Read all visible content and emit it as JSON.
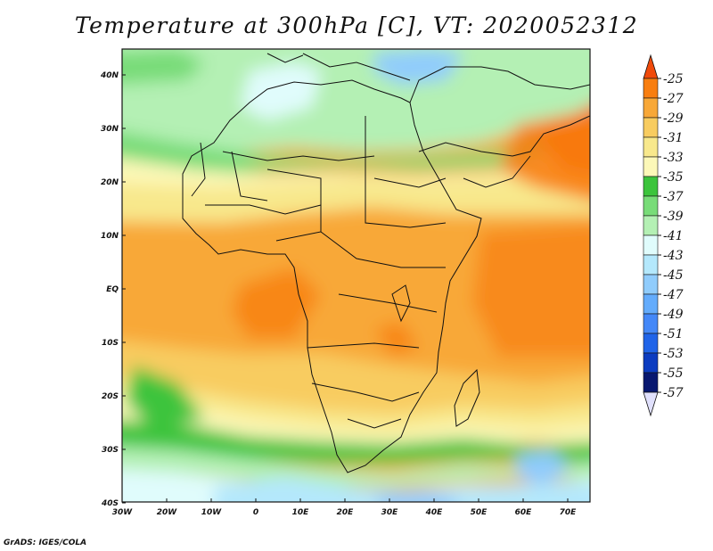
{
  "title": "Temperature at 300hPa [C], VT: 2020052312",
  "credit": "GrADS: IGES/COLA",
  "axes": {
    "lon_labels": [
      "30W",
      "20W",
      "10W",
      "0",
      "10E",
      "20E",
      "30E",
      "40E",
      "50E",
      "60E",
      "70E"
    ],
    "lat_labels": [
      "40N",
      "30N",
      "20N",
      "10N",
      "EQ",
      "10S",
      "20S",
      "30S",
      "40S"
    ]
  },
  "colorbar": {
    "labels": [
      "-25",
      "-27",
      "-29",
      "-31",
      "-33",
      "-35",
      "-37",
      "-39",
      "-41",
      "-43",
      "-45",
      "-47",
      "-49",
      "-51",
      "-53",
      "-55",
      "-57"
    ],
    "colors": [
      "#f04a0a",
      "#f87e10",
      "#f8a838",
      "#f8cc60",
      "#f8e88c",
      "#fcf8b8",
      "#3cc43c",
      "#78dc78",
      "#b4f0b4",
      "#e0fcfc",
      "#b4e8fc",
      "#90ccfc",
      "#64acfc",
      "#4488f8",
      "#2064e8",
      "#0c3cc0",
      "#081870"
    ],
    "over_color": "#f04a0a",
    "under_color": "#e0e0fc"
  }
}
